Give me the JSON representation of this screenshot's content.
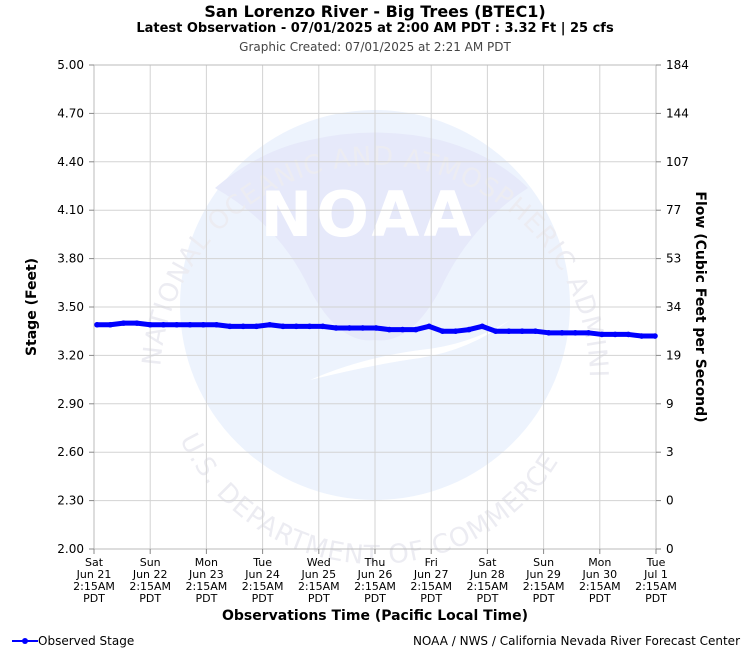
{
  "header": {
    "title": "San Lorenzo River - Big Trees (BTEC1)",
    "subtitle": "Latest Observation - 07/01/2025 at 2:00 AM PDT : 3.32 Ft | 25 cfs",
    "created": "Graphic Created: 07/01/2025 at 2:21 AM PDT"
  },
  "watermark": {
    "logo_text": "NOAA",
    "arc_top": "NATIONAL OCEANIC AND ATMOSPHERIC ADMINISTRATION",
    "arc_bottom": "U.S. DEPARTMENT OF COMMERCE"
  },
  "footer": {
    "legend_label": "Observed Stage",
    "credit": "NOAA / NWS / California Nevada River Forecast Center"
  },
  "colors": {
    "series": "#0000ff",
    "grid": "#d3d3d3",
    "watermark_blue": "#e6e9fa"
  },
  "chart_data": {
    "type": "line",
    "title": "San Lorenzo River - Big Trees (BTEC1)",
    "xlabel": "Observations Time (Pacific Local Time)",
    "ylabel": "Stage (Feet)",
    "ylabel_right": "Flow (Cubic Feet per Second)",
    "ylim": [
      2.0,
      5.0
    ],
    "yticks": [
      "5.00",
      "4.70",
      "4.40",
      "4.10",
      "3.80",
      "3.50",
      "3.20",
      "2.90",
      "2.60",
      "2.30",
      "2.00"
    ],
    "yticks_right": [
      "184",
      "144",
      "107",
      "77",
      "53",
      "34",
      "19",
      "9",
      "3",
      "0",
      "0"
    ],
    "xticks": [
      [
        "Sat",
        "Jun 21",
        "2:15AM",
        "PDT"
      ],
      [
        "Sun",
        "Jun 22",
        "2:15AM",
        "PDT"
      ],
      [
        "Mon",
        "Jun 23",
        "2:15AM",
        "PDT"
      ],
      [
        "Tue",
        "Jun 24",
        "2:15AM",
        "PDT"
      ],
      [
        "Wed",
        "Jun 25",
        "2:15AM",
        "PDT"
      ],
      [
        "Thu",
        "Jun 26",
        "2:15AM",
        "PDT"
      ],
      [
        "Fri",
        "Jun 27",
        "2:15AM",
        "PDT"
      ],
      [
        "Sat",
        "Jun 28",
        "2:15AM",
        "PDT"
      ],
      [
        "Sun",
        "Jun 29",
        "2:15AM",
        "PDT"
      ],
      [
        "Mon",
        "Jun 30",
        "2:15AM",
        "PDT"
      ],
      [
        "Tue",
        "Jul 1",
        "2:15AM",
        "PDT"
      ]
    ],
    "grid": true,
    "legend_position": "bottom-left",
    "series": [
      {
        "name": "Observed Stage",
        "x": [
          "06/21 2:15AM",
          "06/21 4:00AM",
          "06/21 8:00AM",
          "06/21 12:00PM",
          "06/21 4:00PM",
          "06/21 8:00PM",
          "06/22 2:15AM",
          "06/22 8:00AM",
          "06/22 2:00PM",
          "06/22 8:00PM",
          "06/23 2:15AM",
          "06/23 8:00AM",
          "06/23 2:00PM",
          "06/23 8:00PM",
          "06/24 2:15AM",
          "06/24 8:00AM",
          "06/24 2:00PM",
          "06/24 8:00PM",
          "06/25 2:15AM",
          "06/25 8:00AM",
          "06/25 2:00PM",
          "06/25 8:00PM",
          "06/26 2:15AM",
          "06/26 8:00AM",
          "06/26 2:00PM",
          "06/26 8:00PM",
          "06/27 2:15AM",
          "06/27 8:00AM",
          "06/27 2:00PM",
          "06/27 8:00PM",
          "06/28 2:15AM",
          "06/28 8:00AM",
          "06/28 2:00PM",
          "06/28 8:00PM",
          "06/29 2:15AM",
          "06/29 8:00AM",
          "06/29 2:00PM",
          "06/29 8:00PM",
          "06/30 2:15AM",
          "06/30 8:00AM",
          "06/30 2:00PM",
          "06/30 8:00PM",
          "07/01 2:00AM"
        ],
        "values": [
          3.39,
          3.39,
          3.4,
          3.4,
          3.39,
          3.39,
          3.39,
          3.39,
          3.39,
          3.39,
          3.38,
          3.38,
          3.38,
          3.39,
          3.38,
          3.38,
          3.38,
          3.38,
          3.37,
          3.37,
          3.37,
          3.37,
          3.36,
          3.36,
          3.36,
          3.38,
          3.35,
          3.35,
          3.36,
          3.38,
          3.35,
          3.35,
          3.35,
          3.35,
          3.34,
          3.34,
          3.34,
          3.34,
          3.33,
          3.33,
          3.33,
          3.32,
          3.32
        ]
      }
    ]
  }
}
